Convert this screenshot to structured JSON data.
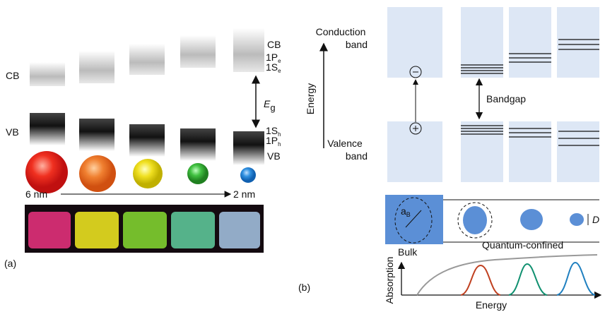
{
  "panel_a": {
    "label": "(a)",
    "cb_left": "CB",
    "vb_left": "VB",
    "cb_right": "CB",
    "level_1pe": {
      "main": "1P",
      "sub": "e"
    },
    "level_1se": {
      "main": "1S",
      "sub": "e"
    },
    "gap": {
      "main": "E",
      "sub": "g"
    },
    "level_1sh": {
      "main": "1S",
      "sub": "h"
    },
    "level_1ph": {
      "main": "1P",
      "sub": "h"
    },
    "vb_right": "VB",
    "size_large": "6 nm",
    "size_small": "2 nm"
  },
  "panel_b": {
    "label": "(b)",
    "energy_axis": "Energy",
    "conduction_band": [
      "Conduction",
      "band"
    ],
    "valence_band": [
      "Valence",
      "band"
    ],
    "bandgap": "Bandgap",
    "bohr_radius": {
      "main": "a",
      "sub": "B"
    },
    "bulk": "Bulk",
    "quantum_confined": "Quantum-confined",
    "diameter": "D",
    "absorption_axis": "Absorption",
    "absorption_energy": "Energy"
  }
}
